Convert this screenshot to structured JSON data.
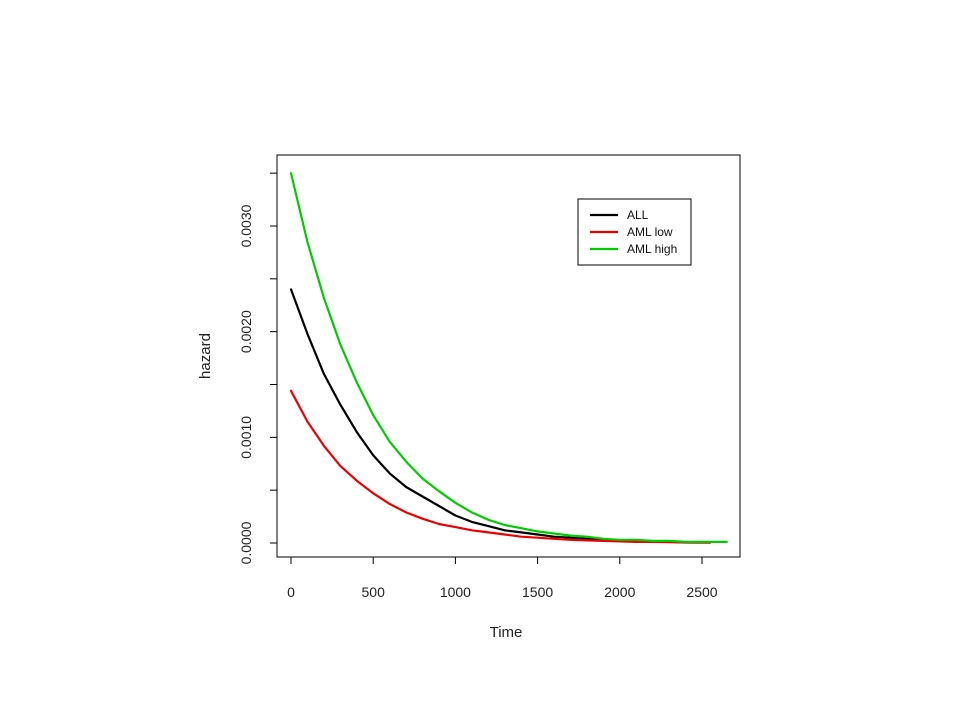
{
  "chart_data": {
    "type": "line",
    "xlabel": "Time",
    "ylabel": "hazard",
    "xlim": [
      0,
      2650
    ],
    "ylim": [
      -0.0001,
      0.0036
    ],
    "xticks": [
      0,
      500,
      1000,
      1500,
      2000,
      2500
    ],
    "xtick_labels": [
      "0",
      "500",
      "1000",
      "1500",
      "2000",
      "2500"
    ],
    "yticks": [
      0.0,
      0.0005,
      0.001,
      0.0015,
      0.002,
      0.0025,
      0.003,
      0.0035
    ],
    "ytick_labels": [
      "0.0000",
      "",
      "0.0010",
      "",
      "0.0020",
      "",
      "0.0030",
      ""
    ],
    "legend_position": "top-right",
    "grid": false,
    "series": [
      {
        "name": "ALL",
        "color": "#000000",
        "x": [
          0,
          100,
          200,
          300,
          400,
          500,
          600,
          700,
          800,
          900,
          1000,
          1100,
          1200,
          1300,
          1400,
          1500,
          1600,
          1700,
          1800,
          1900,
          2000,
          2100,
          2200,
          2300,
          2400,
          2550
        ],
        "y": [
          0.0024,
          0.00198,
          0.0016,
          0.00131,
          0.00105,
          0.00083,
          0.00066,
          0.00053,
          0.00044,
          0.00035,
          0.00026,
          0.0002,
          0.00016,
          0.00012,
          0.0001,
          8e-05,
          6e-05,
          5e-05,
          4e-05,
          3e-05,
          2e-05,
          1.5e-05,
          1e-05,
          1e-05,
          5e-06,
          5e-06
        ]
      },
      {
        "name": "AML low",
        "color": "#ee0000",
        "x": [
          0,
          100,
          200,
          300,
          400,
          500,
          600,
          700,
          800,
          900,
          1000,
          1100,
          1200,
          1300,
          1400,
          1500,
          1600,
          1700,
          1800,
          1900,
          2000,
          2100,
          2200,
          2300,
          2400,
          2550
        ],
        "y": [
          0.00144,
          0.00115,
          0.00092,
          0.00073,
          0.00059,
          0.00047,
          0.00037,
          0.00029,
          0.00023,
          0.00018,
          0.00015,
          0.00012,
          0.0001,
          8e-05,
          6e-05,
          5e-05,
          4e-05,
          3e-05,
          2.5e-05,
          2e-05,
          1.5e-05,
          1e-05,
          1e-05,
          8e-06,
          6e-06,
          5e-06
        ]
      },
      {
        "name": "AML high",
        "color": "#00cc00",
        "x": [
          0,
          100,
          200,
          300,
          400,
          500,
          600,
          700,
          800,
          900,
          1000,
          1100,
          1200,
          1300,
          1400,
          1500,
          1600,
          1700,
          1800,
          1900,
          2000,
          2100,
          2200,
          2300,
          2400,
          2500,
          2650
        ],
        "y": [
          0.0035,
          0.00285,
          0.00232,
          0.00188,
          0.00152,
          0.00121,
          0.00096,
          0.00077,
          0.00061,
          0.00049,
          0.00038,
          0.00029,
          0.00022,
          0.00017,
          0.00014,
          0.00011,
          9e-05,
          7e-05,
          6e-05,
          4e-05,
          3e-05,
          3e-05,
          2e-05,
          2e-05,
          1e-05,
          1e-05,
          1e-05
        ]
      }
    ]
  }
}
